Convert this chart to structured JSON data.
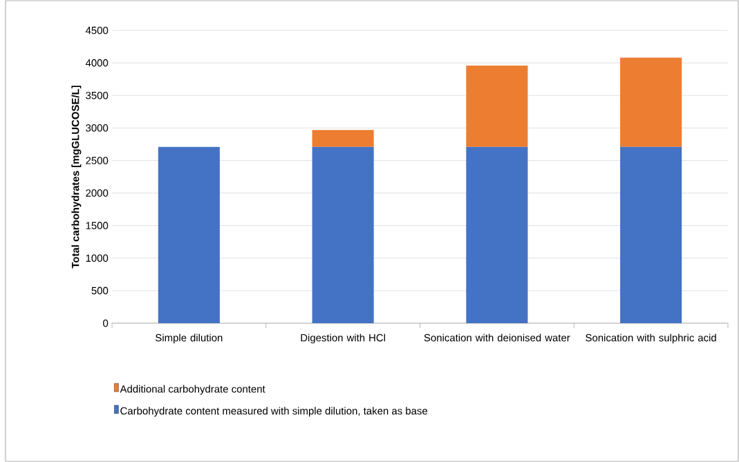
{
  "chart_data": {
    "type": "bar",
    "stacked": true,
    "ylabel": "Total carbohydrates [mgGLUCOSE/L]",
    "categories": [
      "Simple dilution",
      "Digestion with HCl",
      "Sonication with deionised water",
      "Sonication with sulphric acid"
    ],
    "series": [
      {
        "name": "Carbohydrate content measured with simple dilution, taken as base",
        "color": "#4472c4",
        "values": [
          2710,
          2710,
          2710,
          2710
        ]
      },
      {
        "name": "Additional carbohydrate content",
        "color": "#ed7d31",
        "values": [
          0,
          260,
          1250,
          1370
        ]
      }
    ],
    "ylim": [
      0,
      4500
    ],
    "yticks": [
      0,
      500,
      1000,
      1500,
      2000,
      2500,
      3000,
      3500,
      4000,
      4500
    ],
    "grid": "y",
    "legend": "bottom"
  }
}
